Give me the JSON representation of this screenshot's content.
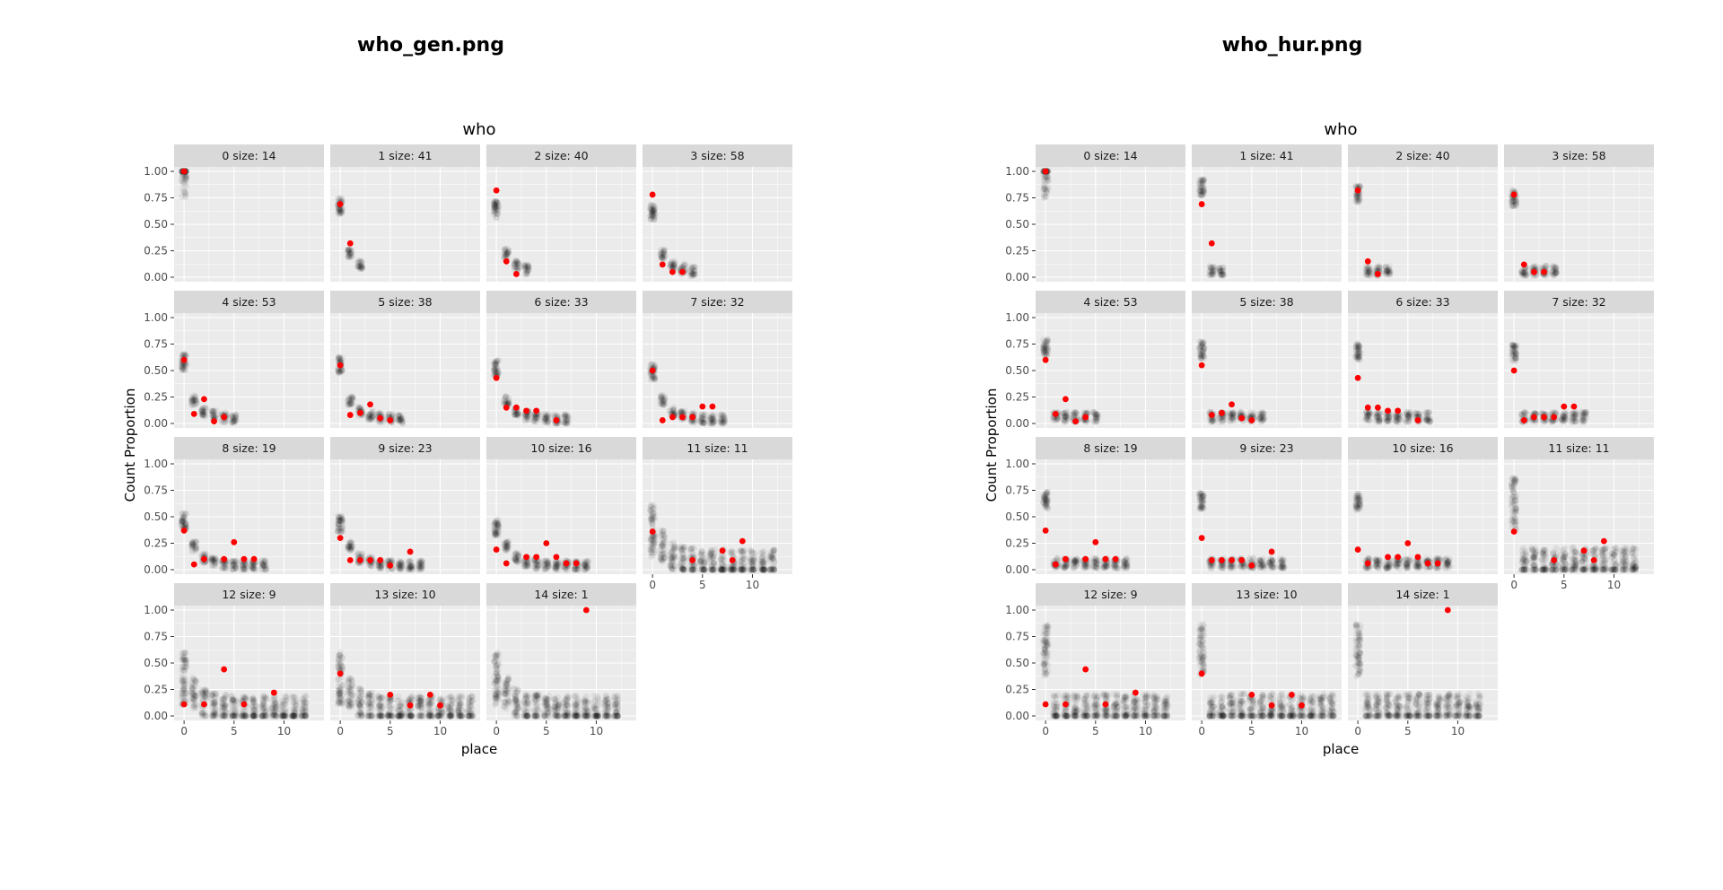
{
  "figures": [
    {
      "id": "gen",
      "title": "who_gen.png"
    },
    {
      "id": "hur",
      "title": "who_hur.png"
    }
  ],
  "chart_data": [
    {
      "type": "scatter",
      "figure": "who_gen.png",
      "title": "who",
      "xlabel": "place",
      "ylabel": "Count Proportion",
      "xlim": [
        -1,
        14
      ],
      "ylim": [
        0,
        1
      ],
      "x_ticks": [
        0,
        5,
        10
      ],
      "y_ticks": [
        "0.00",
        "0.25",
        "0.50",
        "0.75",
        "1.00"
      ],
      "facets": [
        {
          "label": "0 size: 14",
          "observed": [
            [
              0,
              1.0
            ]
          ]
        },
        {
          "label": "1 size: 41",
          "observed": [
            [
              0,
              0.69
            ],
            [
              1,
              0.32
            ]
          ]
        },
        {
          "label": "2 size: 40",
          "observed": [
            [
              0,
              0.82
            ],
            [
              1,
              0.15
            ],
            [
              2,
              0.03
            ]
          ]
        },
        {
          "label": "3 size: 58",
          "observed": [
            [
              0,
              0.78
            ],
            [
              1,
              0.12
            ],
            [
              2,
              0.05
            ],
            [
              3,
              0.05
            ]
          ]
        },
        {
          "label": "4 size: 53",
          "observed": [
            [
              0,
              0.6
            ],
            [
              1,
              0.09
            ],
            [
              2,
              0.23
            ],
            [
              3,
              0.02
            ],
            [
              4,
              0.06
            ]
          ]
        },
        {
          "label": "5 size: 38",
          "observed": [
            [
              0,
              0.55
            ],
            [
              1,
              0.08
            ],
            [
              2,
              0.1
            ],
            [
              3,
              0.18
            ],
            [
              4,
              0.05
            ],
            [
              5,
              0.03
            ]
          ]
        },
        {
          "label": "6 size: 33",
          "observed": [
            [
              0,
              0.43
            ],
            [
              1,
              0.15
            ],
            [
              2,
              0.15
            ],
            [
              3,
              0.12
            ],
            [
              4,
              0.12
            ],
            [
              6,
              0.03
            ]
          ]
        },
        {
          "label": "7 size: 32",
          "observed": [
            [
              0,
              0.5
            ],
            [
              1,
              0.03
            ],
            [
              2,
              0.06
            ],
            [
              3,
              0.06
            ],
            [
              4,
              0.06
            ],
            [
              5,
              0.16
            ],
            [
              6,
              0.16
            ]
          ]
        },
        {
          "label": "8 size: 19",
          "observed": [
            [
              0,
              0.37
            ],
            [
              1,
              0.05
            ],
            [
              2,
              0.1
            ],
            [
              4,
              0.1
            ],
            [
              5,
              0.26
            ],
            [
              6,
              0.1
            ],
            [
              7,
              0.1
            ]
          ]
        },
        {
          "label": "9 size: 23",
          "observed": [
            [
              0,
              0.3
            ],
            [
              1,
              0.09
            ],
            [
              2,
              0.09
            ],
            [
              3,
              0.09
            ],
            [
              4,
              0.09
            ],
            [
              5,
              0.04
            ],
            [
              7,
              0.17
            ]
          ]
        },
        {
          "label": "10 size: 16",
          "observed": [
            [
              0,
              0.19
            ],
            [
              1,
              0.06
            ],
            [
              3,
              0.12
            ],
            [
              4,
              0.12
            ],
            [
              5,
              0.25
            ],
            [
              6,
              0.12
            ],
            [
              7,
              0.06
            ],
            [
              8,
              0.06
            ]
          ]
        },
        {
          "label": "11 size: 11",
          "observed": [
            [
              0,
              0.36
            ],
            [
              4,
              0.09
            ],
            [
              7,
              0.18
            ],
            [
              8,
              0.09
            ],
            [
              9,
              0.27
            ]
          ]
        },
        {
          "label": "12 size: 9",
          "observed": [
            [
              0,
              0.11
            ],
            [
              2,
              0.11
            ],
            [
              4,
              0.44
            ],
            [
              6,
              0.11
            ],
            [
              9,
              0.22
            ]
          ]
        },
        {
          "label": "13 size: 10",
          "observed": [
            [
              0,
              0.4
            ],
            [
              5,
              0.2
            ],
            [
              7,
              0.1
            ],
            [
              9,
              0.2
            ],
            [
              10,
              0.1
            ]
          ]
        },
        {
          "label": "14 size: 1",
          "observed": [
            [
              9,
              1.0
            ]
          ]
        }
      ]
    },
    {
      "type": "scatter",
      "figure": "who_hur.png",
      "title": "who",
      "xlabel": "place",
      "ylabel": "Count Proportion",
      "xlim": [
        -1,
        14
      ],
      "ylim": [
        0,
        1
      ],
      "x_ticks": [
        0,
        5,
        10
      ],
      "y_ticks": [
        "0.00",
        "0.25",
        "0.50",
        "0.75",
        "1.00"
      ],
      "facets": [
        {
          "label": "0 size: 14",
          "observed": [
            [
              0,
              1.0
            ]
          ]
        },
        {
          "label": "1 size: 41",
          "observed": [
            [
              0,
              0.69
            ],
            [
              1,
              0.32
            ]
          ]
        },
        {
          "label": "2 size: 40",
          "observed": [
            [
              0,
              0.82
            ],
            [
              1,
              0.15
            ],
            [
              2,
              0.03
            ]
          ]
        },
        {
          "label": "3 size: 58",
          "observed": [
            [
              0,
              0.78
            ],
            [
              1,
              0.12
            ],
            [
              2,
              0.05
            ],
            [
              3,
              0.05
            ]
          ]
        },
        {
          "label": "4 size: 53",
          "observed": [
            [
              0,
              0.6
            ],
            [
              1,
              0.09
            ],
            [
              2,
              0.23
            ],
            [
              3,
              0.02
            ],
            [
              4,
              0.06
            ]
          ]
        },
        {
          "label": "5 size: 38",
          "observed": [
            [
              0,
              0.55
            ],
            [
              1,
              0.08
            ],
            [
              2,
              0.1
            ],
            [
              3,
              0.18
            ],
            [
              4,
              0.05
            ],
            [
              5,
              0.03
            ]
          ]
        },
        {
          "label": "6 size: 33",
          "observed": [
            [
              0,
              0.43
            ],
            [
              1,
              0.15
            ],
            [
              2,
              0.15
            ],
            [
              3,
              0.12
            ],
            [
              4,
              0.12
            ],
            [
              6,
              0.03
            ]
          ]
        },
        {
          "label": "7 size: 32",
          "observed": [
            [
              0,
              0.5
            ],
            [
              1,
              0.03
            ],
            [
              2,
              0.06
            ],
            [
              3,
              0.06
            ],
            [
              4,
              0.06
            ],
            [
              5,
              0.16
            ],
            [
              6,
              0.16
            ]
          ]
        },
        {
          "label": "8 size: 19",
          "observed": [
            [
              0,
              0.37
            ],
            [
              1,
              0.05
            ],
            [
              2,
              0.1
            ],
            [
              4,
              0.1
            ],
            [
              5,
              0.26
            ],
            [
              6,
              0.1
            ],
            [
              7,
              0.1
            ]
          ]
        },
        {
          "label": "9 size: 23",
          "observed": [
            [
              0,
              0.3
            ],
            [
              1,
              0.09
            ],
            [
              2,
              0.09
            ],
            [
              3,
              0.09
            ],
            [
              4,
              0.09
            ],
            [
              5,
              0.04
            ],
            [
              7,
              0.17
            ]
          ]
        },
        {
          "label": "10 size: 16",
          "observed": [
            [
              0,
              0.19
            ],
            [
              1,
              0.06
            ],
            [
              3,
              0.12
            ],
            [
              4,
              0.12
            ],
            [
              5,
              0.25
            ],
            [
              6,
              0.12
            ],
            [
              7,
              0.06
            ],
            [
              8,
              0.06
            ]
          ]
        },
        {
          "label": "11 size: 11",
          "observed": [
            [
              0,
              0.36
            ],
            [
              4,
              0.09
            ],
            [
              7,
              0.18
            ],
            [
              8,
              0.09
            ],
            [
              9,
              0.27
            ]
          ]
        },
        {
          "label": "12 size: 9",
          "observed": [
            [
              0,
              0.11
            ],
            [
              2,
              0.11
            ],
            [
              4,
              0.44
            ],
            [
              6,
              0.11
            ],
            [
              9,
              0.22
            ]
          ]
        },
        {
          "label": "13 size: 10",
          "observed": [
            [
              0,
              0.4
            ],
            [
              5,
              0.2
            ],
            [
              7,
              0.1
            ],
            [
              9,
              0.2
            ],
            [
              10,
              0.1
            ]
          ]
        },
        {
          "label": "14 size: 1",
          "observed": [
            [
              9,
              1.0
            ]
          ]
        }
      ]
    }
  ],
  "colors": {
    "panel_bg": "#ebebeb",
    "strip_bg": "#d9d9d9",
    "grid": "#ffffff",
    "observed_point": "#ff0000",
    "simulated_point": "#000000"
  }
}
